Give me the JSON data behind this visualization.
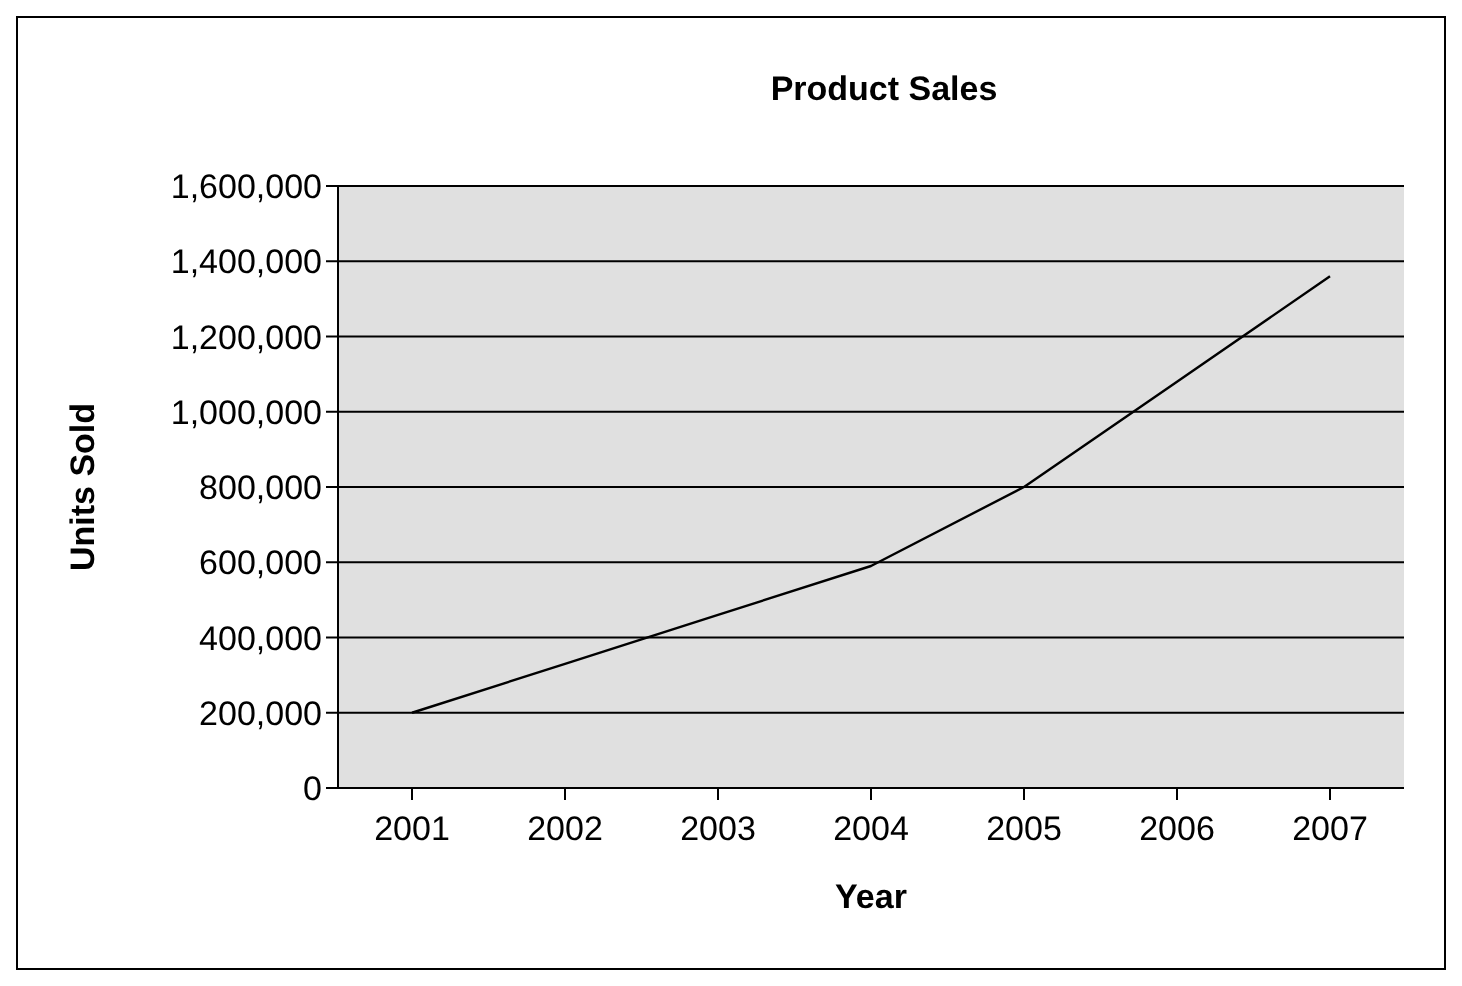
{
  "chart_data": {
    "type": "line",
    "title": "Product Sales",
    "xlabel": "Year",
    "ylabel": "Units Sold",
    "categories": [
      "2001",
      "2002",
      "2003",
      "2004",
      "2005",
      "2006",
      "2007"
    ],
    "series": [
      {
        "color": "#000000",
        "values": [
          200000,
          330000,
          460000,
          590000,
          800000,
          1080000,
          1360000
        ]
      }
    ],
    "ylim": [
      0,
      1600000
    ],
    "yticks": [
      0,
      {
        "value": 200000,
        "label": "200,000"
      },
      {
        "value": 400000,
        "label": "400,000"
      },
      {
        "value": 600000,
        "label": "600,000"
      },
      {
        "value": 800000,
        "label": "800,000"
      },
      {
        "value": 1000000,
        "label": "1,000,000"
      },
      {
        "value": 1200000,
        "label": "1,200,000"
      },
      {
        "value": 1400000,
        "label": "1,400,000"
      },
      {
        "value": 1600000,
        "label": "1,600,000"
      }
    ],
    "grid": "y",
    "marker": "none",
    "line_style": "solid"
  }
}
